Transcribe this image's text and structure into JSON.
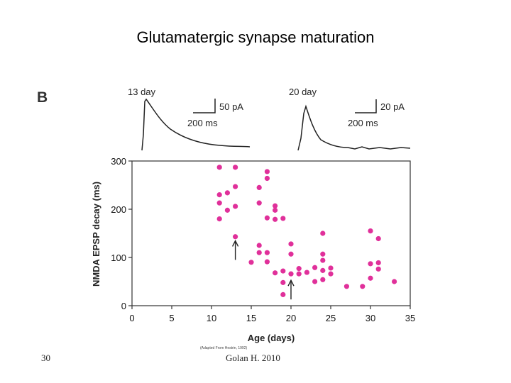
{
  "slide": {
    "title": "Glutamatergic synapse maturation",
    "panel_letter": "B",
    "slide_number": "30",
    "footer": "Golan H. 2010",
    "credit": "(Adapted From Hestrin, 1992)"
  },
  "traces": [
    {
      "age_label": "13 day",
      "scale_current": "50 pA",
      "scale_time": "200 ms"
    },
    {
      "age_label": "20 day",
      "scale_current": "20 pA",
      "scale_time": "200 ms"
    }
  ],
  "colors": {
    "point": "#e0309a",
    "axis": "#333333",
    "trace": "#222222"
  },
  "chart_data": {
    "type": "scatter",
    "xlabel": "Age (days)",
    "ylabel": "NMDA EPSP decay (ms)",
    "xlim": [
      0,
      35
    ],
    "ylim": [
      0,
      300
    ],
    "x_ticks": [
      0,
      5,
      10,
      15,
      20,
      25,
      30,
      35
    ],
    "y_ticks": [
      0,
      100,
      200,
      300
    ],
    "grid": false,
    "points": [
      {
        "x": 11,
        "y": 287
      },
      {
        "x": 11,
        "y": 230
      },
      {
        "x": 11,
        "y": 213
      },
      {
        "x": 11,
        "y": 180
      },
      {
        "x": 12,
        "y": 234
      },
      {
        "x": 12,
        "y": 198
      },
      {
        "x": 13,
        "y": 287
      },
      {
        "x": 13,
        "y": 247
      },
      {
        "x": 13,
        "y": 206
      },
      {
        "x": 13,
        "y": 143
      },
      {
        "x": 15,
        "y": 90
      },
      {
        "x": 16,
        "y": 245
      },
      {
        "x": 16,
        "y": 213
      },
      {
        "x": 16,
        "y": 125
      },
      {
        "x": 16,
        "y": 110
      },
      {
        "x": 17,
        "y": 278
      },
      {
        "x": 17,
        "y": 264
      },
      {
        "x": 17,
        "y": 182
      },
      {
        "x": 17,
        "y": 110
      },
      {
        "x": 17,
        "y": 91
      },
      {
        "x": 18,
        "y": 207
      },
      {
        "x": 18,
        "y": 198
      },
      {
        "x": 18,
        "y": 179
      },
      {
        "x": 18,
        "y": 68
      },
      {
        "x": 19,
        "y": 181
      },
      {
        "x": 19,
        "y": 72
      },
      {
        "x": 19,
        "y": 48
      },
      {
        "x": 19,
        "y": 23
      },
      {
        "x": 20,
        "y": 128
      },
      {
        "x": 20,
        "y": 107
      },
      {
        "x": 20,
        "y": 66
      },
      {
        "x": 21,
        "y": 77
      },
      {
        "x": 21,
        "y": 66
      },
      {
        "x": 22,
        "y": 69
      },
      {
        "x": 23,
        "y": 79
      },
      {
        "x": 23,
        "y": 50
      },
      {
        "x": 24,
        "y": 150
      },
      {
        "x": 24,
        "y": 107
      },
      {
        "x": 24,
        "y": 94
      },
      {
        "x": 24,
        "y": 73
      },
      {
        "x": 24,
        "y": 54
      },
      {
        "x": 25,
        "y": 78
      },
      {
        "x": 25,
        "y": 66
      },
      {
        "x": 27,
        "y": 40
      },
      {
        "x": 29,
        "y": 40
      },
      {
        "x": 30,
        "y": 155
      },
      {
        "x": 30,
        "y": 87
      },
      {
        "x": 30,
        "y": 57
      },
      {
        "x": 31,
        "y": 139
      },
      {
        "x": 31,
        "y": 89
      },
      {
        "x": 31,
        "y": 76
      },
      {
        "x": 33,
        "y": 50
      }
    ],
    "arrows": [
      {
        "x": 13,
        "y": 95
      },
      {
        "x": 20,
        "y": 13
      }
    ]
  }
}
